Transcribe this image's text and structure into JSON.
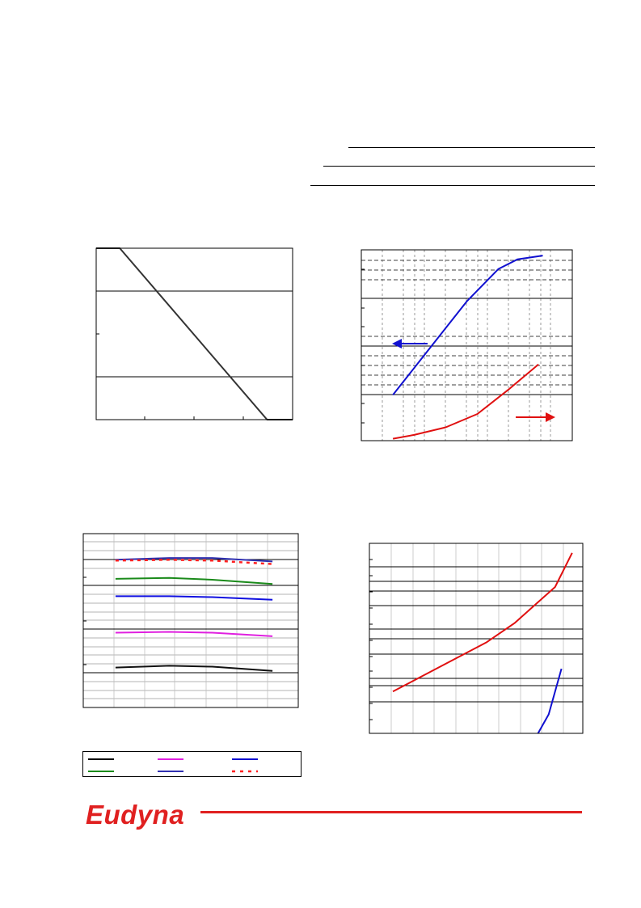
{
  "brand": {
    "logo_text": "Eudyna",
    "color": "#e02020"
  },
  "chart_data": [
    {
      "id": "c1",
      "type": "line",
      "series": [
        {
          "color": "#333333",
          "x": [
            0,
            0.12,
            0.87,
            1.0
          ],
          "y": [
            1.0,
            1.0,
            0.0,
            0.0
          ]
        }
      ],
      "xlim": [
        0,
        1
      ],
      "ylim": [
        0,
        1
      ],
      "grid": {
        "y": [
          0.27,
          0.8
        ],
        "xticks": [
          0.25,
          0.5,
          0.75
        ],
        "yticks": [
          0.53
        ]
      }
    },
    {
      "id": "c2",
      "type": "line",
      "series": [
        {
          "color": "#1010d0",
          "x": [
            0.15,
            0.3,
            0.5,
            0.65,
            0.74,
            0.86
          ],
          "y": [
            0.24,
            0.45,
            0.73,
            0.9,
            0.95,
            0.97
          ]
        },
        {
          "color": "#e01010",
          "x": [
            0.15,
            0.25,
            0.4,
            0.55,
            0.7,
            0.84
          ],
          "y": [
            0.01,
            0.03,
            0.07,
            0.14,
            0.27,
            0.4
          ]
        }
      ],
      "arrows": [
        {
          "direction": "left",
          "color": "#1010d0"
        },
        {
          "direction": "right",
          "color": "#e01010"
        }
      ],
      "xlim": [
        0,
        1
      ],
      "ylim": [
        0,
        1
      ]
    },
    {
      "id": "c3",
      "type": "line",
      "series": [
        {
          "color": "#3030b0",
          "dash": false,
          "x": [
            0.15,
            0.4,
            0.6,
            0.88
          ],
          "y": [
            0.85,
            0.86,
            0.86,
            0.84
          ]
        },
        {
          "color": "#ff2020",
          "dash": true,
          "x": [
            0.15,
            0.4,
            0.6,
            0.88
          ],
          "y": [
            0.845,
            0.85,
            0.845,
            0.825
          ]
        },
        {
          "color": "#1a8a1a",
          "dash": false,
          "x": [
            0.15,
            0.4,
            0.6,
            0.88
          ],
          "y": [
            0.74,
            0.745,
            0.735,
            0.71
          ]
        },
        {
          "color": "#1010e0",
          "dash": false,
          "x": [
            0.15,
            0.4,
            0.6,
            0.88
          ],
          "y": [
            0.64,
            0.64,
            0.635,
            0.62
          ]
        },
        {
          "color": "#e020e0",
          "dash": false,
          "x": [
            0.15,
            0.4,
            0.6,
            0.88
          ],
          "y": [
            0.43,
            0.435,
            0.43,
            0.41
          ]
        },
        {
          "color": "#111111",
          "dash": false,
          "x": [
            0.15,
            0.4,
            0.6,
            0.88
          ],
          "y": [
            0.23,
            0.24,
            0.235,
            0.21
          ]
        }
      ],
      "xlim": [
        0,
        1
      ],
      "ylim": [
        0,
        1
      ]
    },
    {
      "id": "c4",
      "type": "line",
      "series": [
        {
          "color": "#e01010",
          "x": [
            0.11,
            0.33,
            0.55,
            0.68,
            0.87,
            0.95
          ],
          "y": [
            0.22,
            0.35,
            0.48,
            0.58,
            0.77,
            0.95
          ]
        },
        {
          "color": "#1010d0",
          "x": [
            0.79,
            0.84,
            0.9
          ],
          "y": [
            0.0,
            0.1,
            0.34
          ]
        }
      ],
      "xlim": [
        0,
        1
      ],
      "ylim": [
        0,
        1
      ]
    }
  ],
  "legend": {
    "entries": [
      {
        "color": "#000000",
        "dash": false
      },
      {
        "color": "#e020e0",
        "dash": false
      },
      {
        "color": "#1010d0",
        "dash": false
      },
      {
        "color": "#1a8a1a",
        "dash": false
      },
      {
        "color": "#3030b0",
        "dash": false
      },
      {
        "color": "#ff2020",
        "dash": true
      }
    ]
  }
}
